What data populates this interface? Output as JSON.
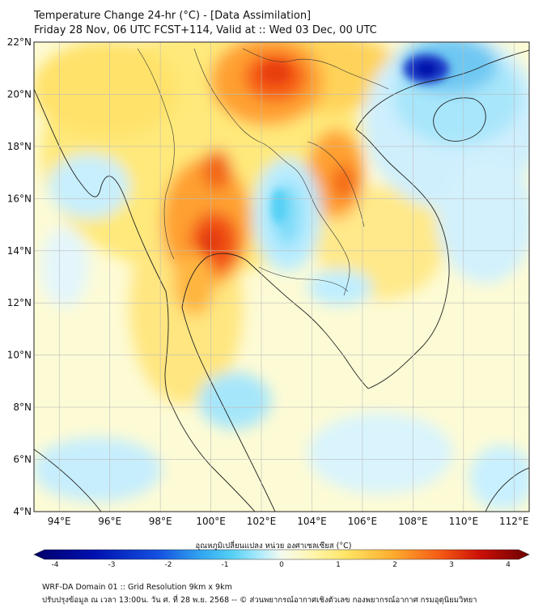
{
  "title": {
    "line1": "Temperature Change 24-hr (°C) - [Data Assimilation]",
    "line2": "Friday 28 Nov, 06 UTC FCST+114, Valid at :: Wed 03 Dec, 00 UTC"
  },
  "axes": {
    "lat_labels": [
      "22°N",
      "20°N",
      "18°N",
      "16°N",
      "14°N",
      "12°N",
      "10°N",
      "8°N",
      "6°N",
      "4°N"
    ],
    "lon_labels": [
      "94°E",
      "96°E",
      "98°E",
      "100°E",
      "102°E",
      "104°E",
      "106°E",
      "108°E",
      "110°E",
      "112°E"
    ]
  },
  "colorbar": {
    "title": "อุณหภูมิเปลี่ยนแปลง หน่วย องศาเซลเซียส (°C)",
    "ticks": [
      "-4",
      "-3",
      "-2",
      "-1",
      "0",
      "1",
      "2",
      "3",
      "4"
    ],
    "range": [
      -4,
      4
    ]
  },
  "field": {
    "description_blobs": [
      {
        "region": "Northern Thailand / Myanmar border",
        "value": 2.2
      },
      {
        "region": "Central Thailand (Bangkok area)",
        "value": 3.0
      },
      {
        "region": "Northern Laos / Yunnan",
        "value": 2.8
      },
      {
        "region": "Central Laos / Vietnam coast",
        "value": 2.5
      },
      {
        "region": "Northeast Thailand (Isan)",
        "value": -0.9
      },
      {
        "region": "South China coast",
        "value": -3.5
      },
      {
        "region": "Hainan area",
        "value": -0.8
      },
      {
        "region": "Gulf of Thailand",
        "value": -0.7
      }
    ]
  },
  "footer": {
    "line1": "WRF-DA Domain 01 :: Grid Resolution 9km x 9km",
    "line2": "ปรับปรุงข้อมูล ณ เวลา 13:00น. วัน ศ. ที่ 28 พ.ย. 2568 -- © ส่วนพยากรณ์อากาศเชิงตัวเลข กองพยากรณ์อากาศ กรมอุตุนิยมวิทยา"
  },
  "colors": {
    "neutral": "#fdfde0",
    "warm_light": "#ffe566",
    "warm_mid": "#ffaa22",
    "warm_strong": "#ee4411",
    "cool_light": "#c8f0ff",
    "cool_mid": "#55d0f5",
    "cool_strong": "#0011aa"
  }
}
